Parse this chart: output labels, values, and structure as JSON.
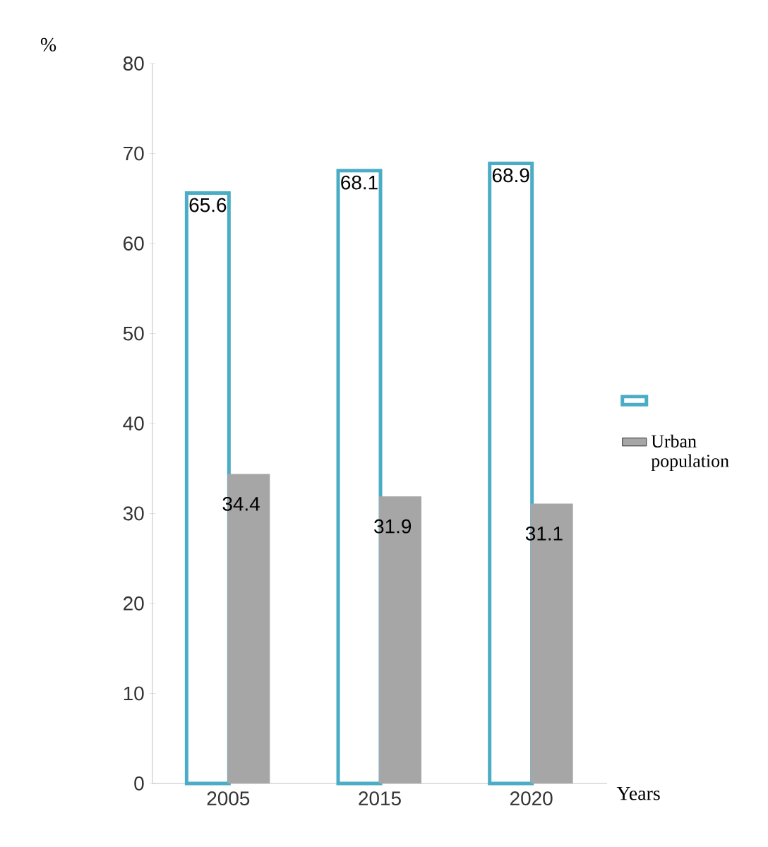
{
  "chart_data": {
    "type": "bar",
    "ylabel": "%",
    "xlabel": "Years",
    "categories": [
      "2005",
      "2015",
      "2020"
    ],
    "series": [
      {
        "color": "#4bacc6",
        "values": [
          65.6,
          68.1,
          68.9
        ]
      },
      {
        "name": "Urban population",
        "color": "#a6a6a6",
        "values": [
          34.4,
          31.9,
          31.1
        ]
      }
    ],
    "ylim": [
      0,
      80
    ],
    "yticks": [
      0,
      10,
      20,
      30,
      40,
      50,
      60,
      70,
      80
    ],
    "data_labels": true,
    "grid": false,
    "legend": "right"
  }
}
